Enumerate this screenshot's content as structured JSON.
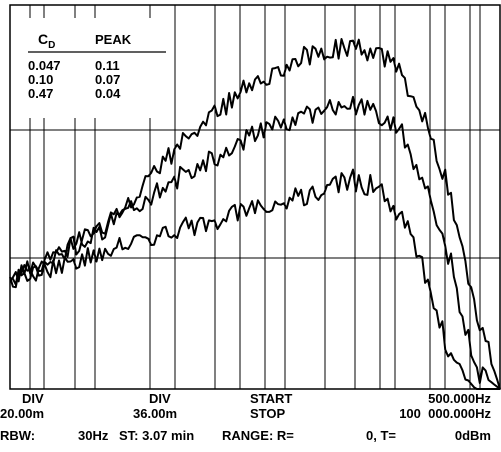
{
  "chart_data": {
    "type": "line",
    "legend": {
      "headers": {
        "cd_main": "C",
        "cd_sub": "D",
        "peak": "PEAK"
      },
      "rows": [
        {
          "cd": "0.047",
          "peak": "0.11"
        },
        {
          "cd": "0.10",
          "peak": "0.07"
        },
        {
          "cd": "0.47",
          "peak": "0.04"
        }
      ],
      "placement": "top-left"
    },
    "grid": true,
    "x": [
      0,
      0.5,
      1,
      1.5,
      2,
      2.5,
      3,
      3.5,
      4,
      4.5,
      5,
      5.5,
      6,
      6.5,
      7,
      7.5,
      8,
      8.5,
      9,
      9.5,
      10
    ],
    "xlim": [
      0,
      10
    ],
    "ylim": [
      0,
      8
    ],
    "series": [
      {
        "values": [
          2.3,
          2.5,
          2.8,
          3.1,
          3.5,
          4.0,
          4.6,
          5.1,
          5.6,
          6.0,
          6.4,
          6.7,
          6.95,
          7.05,
          7.1,
          7.0,
          6.55,
          5.6,
          4.0,
          1.7,
          0.0
        ]
      },
      {
        "values": [
          2.3,
          2.5,
          2.8,
          3.1,
          3.4,
          3.75,
          4.1,
          4.45,
          4.75,
          5.0,
          5.3,
          5.5,
          5.7,
          5.85,
          5.9,
          5.75,
          5.3,
          4.2,
          2.6,
          0.4,
          0.0
        ]
      },
      {
        "values": [
          2.3,
          2.45,
          2.6,
          2.75,
          2.9,
          3.05,
          3.2,
          3.35,
          3.5,
          3.6,
          3.75,
          3.9,
          4.05,
          4.2,
          4.35,
          4.2,
          3.6,
          2.3,
          0.6,
          0.0,
          0.0
        ]
      }
    ]
  },
  "footer": {
    "row1": {
      "div1": "DIV",
      "div2": "DIV",
      "start": "START",
      "start_freq": "500.000Hz"
    },
    "row2": {
      "div1_val": "20.00m",
      "div2_val": "36.00m",
      "stop": "STOP",
      "stop_freq": "100  000.000Hz"
    },
    "row3": {
      "rbw": "RBW:",
      "rbw_val": "30Hz",
      "st": "ST: 3.07 min",
      "range": "RANGE: R=",
      "r_val": "0, T=",
      "t_val": "0dBm"
    }
  }
}
